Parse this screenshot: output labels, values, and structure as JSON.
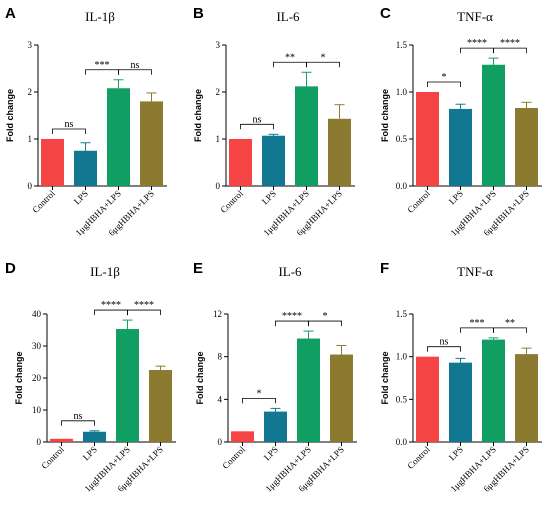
{
  "chart_data": [
    {
      "type": "bar",
      "panel": "A",
      "title": "IL-1β",
      "ylabel": "Fold change",
      "ylim": [
        0,
        3
      ],
      "yticks": [
        "0",
        "1",
        "2",
        "3"
      ],
      "categories": [
        "Control",
        "LPS",
        "1μgHBHA+LPS",
        "6μgHBHA+LPS"
      ],
      "values": [
        1.0,
        0.75,
        2.08,
        1.8
      ],
      "errors": [
        0,
        0.17,
        0.18,
        0.18
      ],
      "colors": [
        "#f44444",
        "#127891",
        "#119e63",
        "#8c7a31"
      ],
      "significance": [
        {
          "from": 0,
          "to": 1,
          "label": "ns"
        },
        {
          "from": 1,
          "to": 2,
          "label": "***"
        },
        {
          "from": 2,
          "to": 3,
          "label": "ns"
        }
      ]
    },
    {
      "type": "bar",
      "panel": "B",
      "title": "IL-6",
      "ylabel": "Fold change",
      "ylim": [
        0,
        3
      ],
      "yticks": [
        "0",
        "1",
        "2",
        "3"
      ],
      "categories": [
        "Control",
        "LPS",
        "1μgHBHA+LPS",
        "6μgHBHA+LPS"
      ],
      "values": [
        1.0,
        1.07,
        2.12,
        1.43
      ],
      "errors": [
        0,
        0.03,
        0.3,
        0.3
      ],
      "colors": [
        "#f44444",
        "#127891",
        "#119e63",
        "#8c7a31"
      ],
      "significance": [
        {
          "from": 0,
          "to": 1,
          "label": "ns"
        },
        {
          "from": 1,
          "to": 2,
          "label": "**"
        },
        {
          "from": 2,
          "to": 3,
          "label": "*"
        }
      ]
    },
    {
      "type": "bar",
      "panel": "C",
      "title": "TNF-α",
      "ylabel": "Fold change",
      "ylim": [
        0,
        1.5
      ],
      "yticks": [
        "0.0",
        "0.5",
        "1.0",
        "1.5"
      ],
      "categories": [
        "Control",
        "LPS",
        "1μgHBHA+LPS",
        "6μgHBHA+LPS"
      ],
      "values": [
        1.0,
        0.82,
        1.29,
        0.83
      ],
      "errors": [
        0,
        0.05,
        0.07,
        0.06
      ],
      "colors": [
        "#f44444",
        "#127891",
        "#119e63",
        "#8c7a31"
      ],
      "significance": [
        {
          "from": 0,
          "to": 1,
          "label": "*"
        },
        {
          "from": 1,
          "to": 2,
          "label": "****"
        },
        {
          "from": 2,
          "to": 3,
          "label": "****"
        }
      ]
    },
    {
      "type": "bar",
      "panel": "D",
      "title": "IL-1β",
      "ylabel": "Fold change",
      "ylim": [
        0,
        40
      ],
      "yticks": [
        "0",
        "10",
        "20",
        "30",
        "40"
      ],
      "categories": [
        "Control",
        "LPS",
        "1μgHBHA+LPS",
        "6μgHBHA+LPS"
      ],
      "values": [
        1.0,
        3.2,
        35.3,
        22.5
      ],
      "errors": [
        0,
        0.3,
        2.8,
        1.2
      ],
      "colors": [
        "#f44444",
        "#127891",
        "#119e63",
        "#8c7a31"
      ],
      "significance": [
        {
          "from": 0,
          "to": 1,
          "label": "ns"
        },
        {
          "from": 1,
          "to": 2,
          "label": "****"
        },
        {
          "from": 2,
          "to": 3,
          "label": "****"
        }
      ]
    },
    {
      "type": "bar",
      "panel": "E",
      "title": "IL-6",
      "ylabel": "Fold change",
      "ylim": [
        0,
        12
      ],
      "yticks": [
        "0",
        "4",
        "8",
        "12"
      ],
      "categories": [
        "Control",
        "LPS",
        "1μgHBHA+LPS",
        "6μgHBHA+LPS"
      ],
      "values": [
        1.0,
        2.85,
        9.7,
        8.2
      ],
      "errors": [
        0,
        0.3,
        0.7,
        0.85
      ],
      "colors": [
        "#f44444",
        "#127891",
        "#119e63",
        "#8c7a31"
      ],
      "significance": [
        {
          "from": 0,
          "to": 1,
          "label": "*"
        },
        {
          "from": 1,
          "to": 2,
          "label": "****"
        },
        {
          "from": 2,
          "to": 3,
          "label": "*"
        }
      ]
    },
    {
      "type": "bar",
      "panel": "F",
      "title": "TNF-α",
      "ylabel": "Fold change",
      "ylim": [
        0,
        1.5
      ],
      "yticks": [
        "0.0",
        "0.5",
        "1.0",
        "1.5"
      ],
      "categories": [
        "Control",
        "LPS",
        "1μgHBHA+LPS",
        "6μgHBHA+LPS"
      ],
      "values": [
        1.0,
        0.93,
        1.2,
        1.03
      ],
      "errors": [
        0,
        0.05,
        0.02,
        0.07
      ],
      "colors": [
        "#f44444",
        "#127891",
        "#119e63",
        "#8c7a31"
      ],
      "significance": [
        {
          "from": 0,
          "to": 1,
          "label": "ns"
        },
        {
          "from": 1,
          "to": 2,
          "label": "***"
        },
        {
          "from": 2,
          "to": 3,
          "label": "**"
        }
      ]
    }
  ]
}
